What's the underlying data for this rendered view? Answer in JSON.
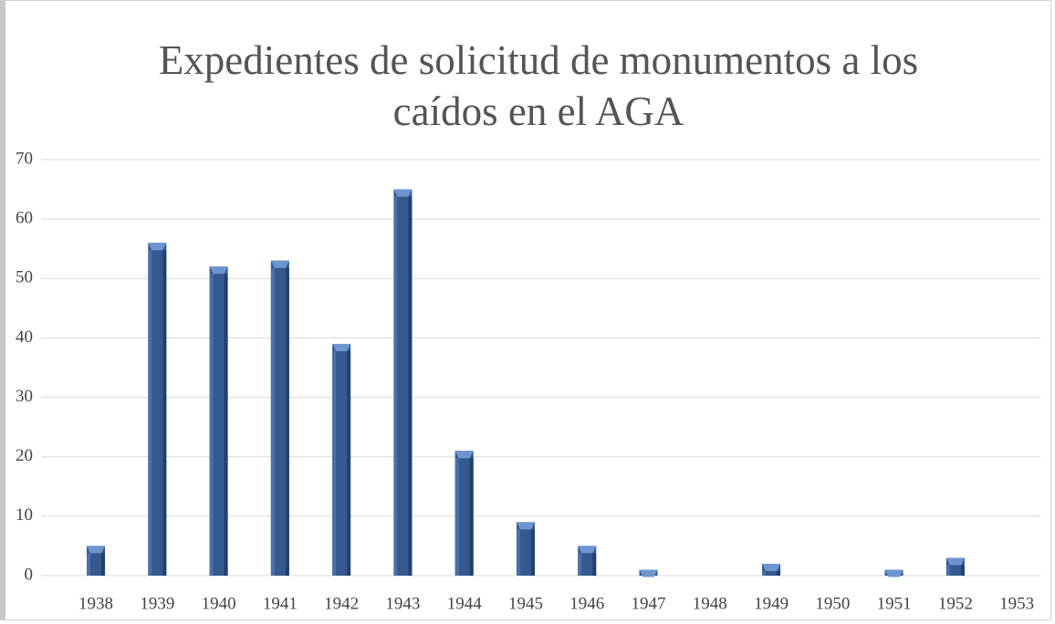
{
  "chart_data": {
    "type": "bar",
    "title": "Expedientes de solicitud de monumentos a los caídos en el AGA",
    "categories": [
      "1938",
      "1939",
      "1940",
      "1941",
      "1942",
      "1943",
      "1944",
      "1945",
      "1946",
      "1947",
      "1948",
      "1949",
      "1950",
      "1951",
      "1952",
      "1953"
    ],
    "values": [
      5,
      56,
      52,
      53,
      39,
      65,
      21,
      9,
      5,
      1,
      0,
      2,
      0,
      1,
      3,
      0
    ],
    "color": "#35598f",
    "ylim": [
      0,
      70
    ],
    "yticks": [
      0,
      10,
      20,
      30,
      40,
      50,
      60,
      70
    ],
    "grid": true
  }
}
